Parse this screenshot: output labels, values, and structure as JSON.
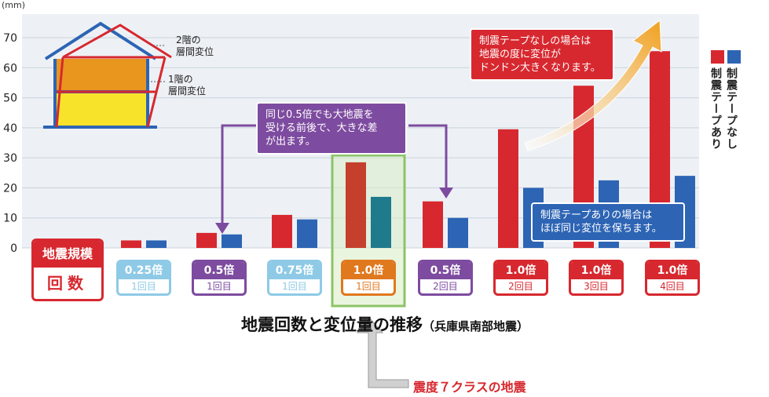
{
  "chart_data": {
    "type": "bar",
    "ylabel": "(mm)",
    "ylim": [
      0,
      75
    ],
    "yticks": [
      0,
      10,
      20,
      30,
      40,
      50,
      60,
      70
    ],
    "grid": true,
    "title": "地震回数と変位量の推移",
    "subtitle": "（兵庫県南部地震）",
    "row_label_top": "地震規模",
    "row_label_bottom": "回数",
    "legend_position": "right",
    "categories": [
      {
        "scale": "0.25倍",
        "count": "1回目"
      },
      {
        "scale": "0.5倍",
        "count": "1回目"
      },
      {
        "scale": "0.75倍",
        "count": "1回目"
      },
      {
        "scale": "1.0倍",
        "count": "1回目"
      },
      {
        "scale": "0.5倍",
        "count": "2回目"
      },
      {
        "scale": "1.0倍",
        "count": "2回目"
      },
      {
        "scale": "1.0倍",
        "count": "3回目"
      },
      {
        "scale": "1.0倍",
        "count": "4回目"
      }
    ],
    "series": [
      {
        "name": "制震テープなし",
        "color": "#d7282f",
        "values": [
          2.5,
          5,
          11,
          28.5,
          15.5,
          39.5,
          54,
          65.5
        ]
      },
      {
        "name": "制震テープあり",
        "color": "#2d64b4",
        "values": [
          2.5,
          4.5,
          9.5,
          17,
          10,
          20,
          22.5,
          24
        ]
      }
    ],
    "badge_colors": [
      "#8ecae6",
      "#7d4b9f",
      "#8ecae6",
      "#e0781e",
      "#7d4b9f",
      "#d7282f",
      "#d7282f",
      "#d7282f"
    ]
  },
  "diagram": {
    "label_2f_line1": "2階の",
    "label_2f_line2": "層間変位",
    "label_1f_line1": "1階の",
    "label_1f_line2": "層間変位"
  },
  "callouts": {
    "purple": "同じ0.5倍でも大地震を\n受ける前後で、大きな差\nが出ます。",
    "red": "制震テープなしの場合は\n地震の度に変位が\nドンドン大きくなります。",
    "blue": "制震テープありの場合は\nほぼ同じ変位を保ちます。"
  },
  "note": "震度７クラスの地震"
}
